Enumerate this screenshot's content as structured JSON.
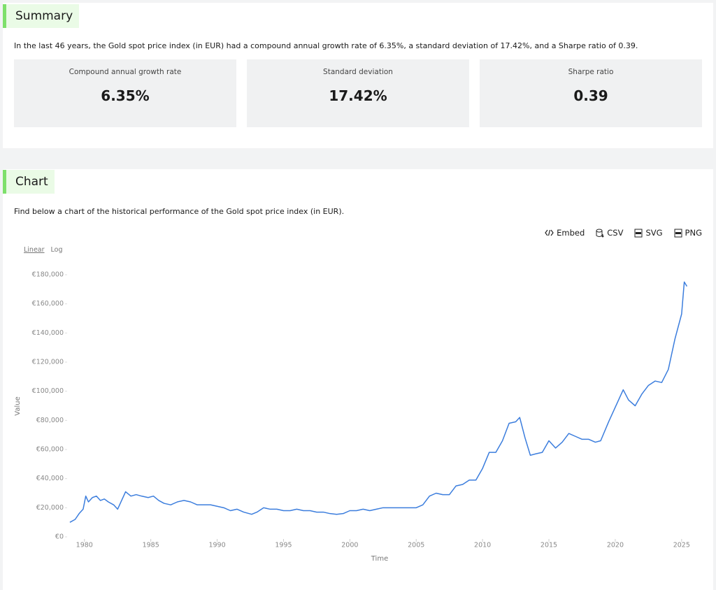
{
  "summary": {
    "heading": "Summary",
    "text": "In the last 46 years, the Gold spot price index (in EUR) had a compound annual growth rate of 6.35%, a standard deviation of 17.42%, and a Sharpe ratio of 0.39.",
    "cards": [
      {
        "label": "Compound annual growth rate",
        "value": "6.35%"
      },
      {
        "label": "Standard deviation",
        "value": "17.42%"
      },
      {
        "label": "Sharpe ratio",
        "value": "0.39"
      }
    ]
  },
  "chart_section": {
    "heading": "Chart",
    "text": "Find below a chart of the historical performance of the Gold spot price index (in EUR).",
    "actions": [
      "Embed",
      "CSV",
      "SVG",
      "PNG"
    ],
    "scale_options": [
      "Linear",
      "Log"
    ]
  },
  "chart_data": {
    "type": "line",
    "x_label": "Time",
    "y_label": "Value",
    "color": "#3b7ddd",
    "xlim": [
      1978.8,
      2025.8
    ],
    "xticks": [
      1980,
      1985,
      1990,
      1995,
      2000,
      2005,
      2010,
      2015,
      2020,
      2025
    ],
    "ylim": [
      0,
      180000
    ],
    "yticks": [
      {
        "value": 0,
        "label": "€0"
      },
      {
        "value": 20000,
        "label": "€20,000"
      },
      {
        "value": 40000,
        "label": "€40,000"
      },
      {
        "value": 60000,
        "label": "€60,000"
      },
      {
        "value": 80000,
        "label": "€80,000"
      },
      {
        "value": 100000,
        "label": "€100,000"
      },
      {
        "value": 120000,
        "label": "€120,000"
      },
      {
        "value": 140000,
        "label": "€140,000"
      },
      {
        "value": 160000,
        "label": "€160,000"
      },
      {
        "value": 180000,
        "label": "€180,000"
      }
    ],
    "grid": false,
    "x": [
      1978.9,
      1979.3,
      1979.6,
      1979.9,
      1980.1,
      1980.3,
      1980.6,
      1980.9,
      1981.2,
      1981.5,
      1981.8,
      1982.2,
      1982.5,
      1982.8,
      1983.1,
      1983.5,
      1983.9,
      1984.3,
      1984.8,
      1985.2,
      1985.6,
      1986.0,
      1986.5,
      1987.0,
      1987.5,
      1988.0,
      1988.5,
      1989.0,
      1989.5,
      1990.0,
      1990.5,
      1991.0,
      1991.5,
      1992.0,
      1992.6,
      1993.0,
      1993.5,
      1994.0,
      1994.5,
      1995.0,
      1995.5,
      1996.0,
      1996.5,
      1997.0,
      1997.5,
      1998.0,
      1998.5,
      1999.0,
      1999.5,
      2000.0,
      2000.5,
      2001.0,
      2001.5,
      2002.0,
      2002.5,
      2003.0,
      2003.5,
      2004.0,
      2004.5,
      2005.0,
      2005.5,
      2006.0,
      2006.5,
      2007.0,
      2007.5,
      2008.0,
      2008.5,
      2009.0,
      2009.5,
      2010.0,
      2010.5,
      2011.0,
      2011.5,
      2012.0,
      2012.5,
      2012.8,
      2013.2,
      2013.6,
      2014.0,
      2014.5,
      2015.0,
      2015.5,
      2016.0,
      2016.5,
      2017.0,
      2017.5,
      2018.0,
      2018.5,
      2018.9,
      2019.5,
      2020.0,
      2020.6,
      2021.0,
      2021.5,
      2022.0,
      2022.5,
      2023.0,
      2023.5,
      2024.0,
      2024.5,
      2025.0,
      2025.2,
      2025.4
    ],
    "values": [
      10000,
      12000,
      16000,
      19000,
      28000,
      24000,
      27000,
      28000,
      25000,
      26000,
      24000,
      22000,
      19000,
      25000,
      31000,
      28000,
      29000,
      28000,
      27000,
      28000,
      25000,
      23000,
      22000,
      24000,
      25000,
      24000,
      22000,
      22000,
      22000,
      21000,
      20000,
      18000,
      19000,
      17000,
      15500,
      17000,
      20000,
      19000,
      19000,
      18000,
      18000,
      19000,
      18000,
      18000,
      17000,
      17000,
      16000,
      15500,
      16000,
      18000,
      18000,
      19000,
      18000,
      19000,
      20000,
      20000,
      20000,
      20000,
      20000,
      20000,
      22000,
      28000,
      30000,
      29000,
      29000,
      35000,
      36000,
      39000,
      39000,
      47000,
      58000,
      58000,
      66000,
      78000,
      79000,
      82000,
      68000,
      56000,
      57000,
      58000,
      66000,
      61000,
      65000,
      71000,
      69000,
      67000,
      67000,
      65000,
      66000,
      79000,
      89000,
      101000,
      94000,
      90000,
      98000,
      104000,
      107000,
      106000,
      115000,
      136000,
      153000,
      175000,
      172000
    ]
  }
}
